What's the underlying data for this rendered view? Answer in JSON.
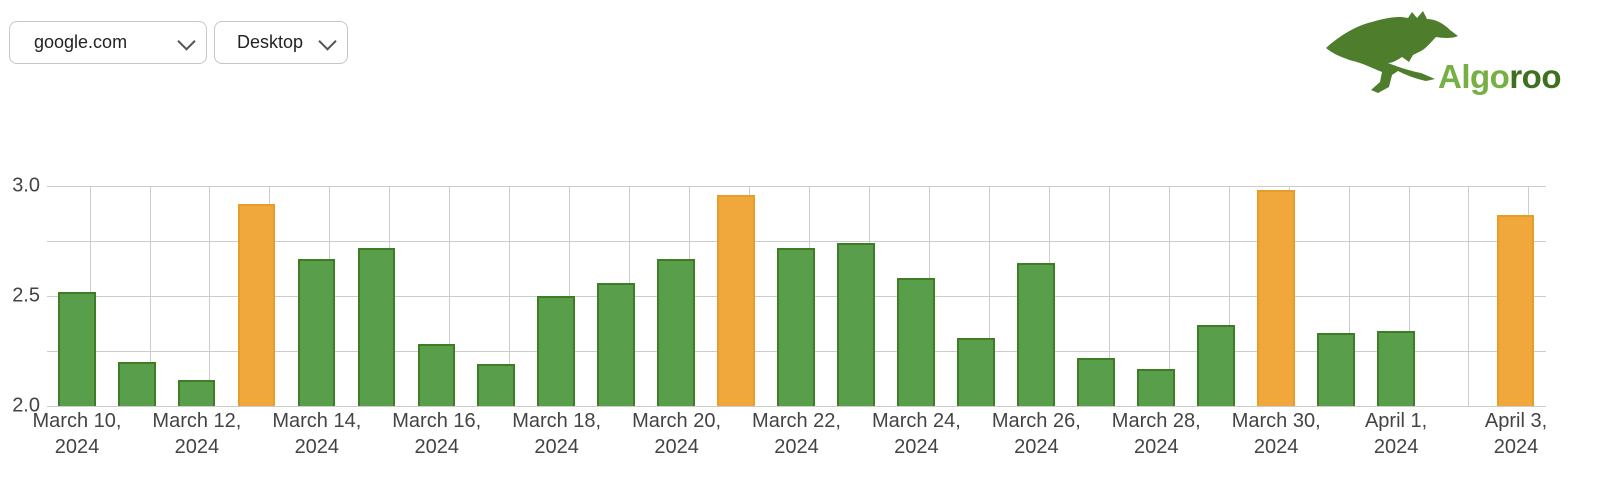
{
  "header": {
    "site_selector": {
      "value": "google.com",
      "icon": "chevron-down-icon"
    },
    "device_selector": {
      "value": "Desktop",
      "icon": "chevron-down-icon"
    },
    "logo": {
      "text_primary": "Algo",
      "text_secondary": "roo",
      "icon": "kangaroo-icon"
    }
  },
  "colors": {
    "bar_normal_fill": "#599e4a",
    "bar_normal_border": "#3e7d23",
    "bar_highlight_fill": "#f0a83c",
    "bar_highlight_border": "#e89d26",
    "gridline": "#cccccc",
    "axis_text": "#444444",
    "logo_primary_green": "#76b043",
    "logo_dark_green": "#3f7020",
    "kangaroo_green": "#4e7e2c"
  },
  "chart_data": {
    "type": "bar",
    "title": "",
    "xlabel": "",
    "ylabel": "",
    "ylim": [
      2.0,
      3.0
    ],
    "yticks": [
      3.0,
      2.5,
      2.0
    ],
    "ytick_labels": [
      "3.0",
      "2.5",
      "2.0"
    ],
    "minor_hgrid_step": 0.25,
    "grid": true,
    "legend": false,
    "points": [
      {
        "date": "March 10, 2024",
        "value": 2.52,
        "highlight": false,
        "tick_top": "March 10,",
        "tick_bottom": "2024"
      },
      {
        "date": "March 11, 2024",
        "value": 2.2,
        "highlight": false
      },
      {
        "date": "March 12, 2024",
        "value": 2.12,
        "highlight": false,
        "tick_top": "March 12,",
        "tick_bottom": "2024"
      },
      {
        "date": "March 13, 2024",
        "value": 2.92,
        "highlight": true
      },
      {
        "date": "March 14, 2024",
        "value": 2.67,
        "highlight": false,
        "tick_top": "March 14,",
        "tick_bottom": "2024"
      },
      {
        "date": "March 15, 2024",
        "value": 2.72,
        "highlight": false
      },
      {
        "date": "March 16, 2024",
        "value": 2.28,
        "highlight": false,
        "tick_top": "March 16,",
        "tick_bottom": "2024"
      },
      {
        "date": "March 17, 2024",
        "value": 2.19,
        "highlight": false
      },
      {
        "date": "March 18, 2024",
        "value": 2.5,
        "highlight": false,
        "tick_top": "March 18,",
        "tick_bottom": "2024"
      },
      {
        "date": "March 19, 2024",
        "value": 2.56,
        "highlight": false
      },
      {
        "date": "March 20, 2024",
        "value": 2.67,
        "highlight": false,
        "tick_top": "March 20,",
        "tick_bottom": "2024"
      },
      {
        "date": "March 21, 2024",
        "value": 2.96,
        "highlight": true
      },
      {
        "date": "March 22, 2024",
        "value": 2.72,
        "highlight": false,
        "tick_top": "March 22,",
        "tick_bottom": "2024"
      },
      {
        "date": "March 23, 2024",
        "value": 2.74,
        "highlight": false
      },
      {
        "date": "March 24, 2024",
        "value": 2.58,
        "highlight": false,
        "tick_top": "March 24,",
        "tick_bottom": "2024"
      },
      {
        "date": "March 25, 2024",
        "value": 2.31,
        "highlight": false
      },
      {
        "date": "March 26, 2024",
        "value": 2.65,
        "highlight": false,
        "tick_top": "March 26,",
        "tick_bottom": "2024"
      },
      {
        "date": "March 27, 2024",
        "value": 2.22,
        "highlight": false
      },
      {
        "date": "March 28, 2024",
        "value": 2.17,
        "highlight": false,
        "tick_top": "March 28,",
        "tick_bottom": "2024"
      },
      {
        "date": "March 29, 2024",
        "value": 2.37,
        "highlight": false
      },
      {
        "date": "March 30, 2024",
        "value": 2.98,
        "highlight": true,
        "tick_top": "March 30,",
        "tick_bottom": "2024"
      },
      {
        "date": "March 31, 2024",
        "value": 2.33,
        "highlight": false
      },
      {
        "date": "April 1, 2024",
        "value": 2.34,
        "highlight": false,
        "tick_top": "April 1,",
        "tick_bottom": "2024"
      },
      {
        "date": "April 2, 2024",
        "value": null,
        "highlight": false
      },
      {
        "date": "April 3, 2024",
        "value": 2.87,
        "highlight": true,
        "tick_top": "April 3,",
        "tick_bottom": "2024"
      }
    ]
  }
}
